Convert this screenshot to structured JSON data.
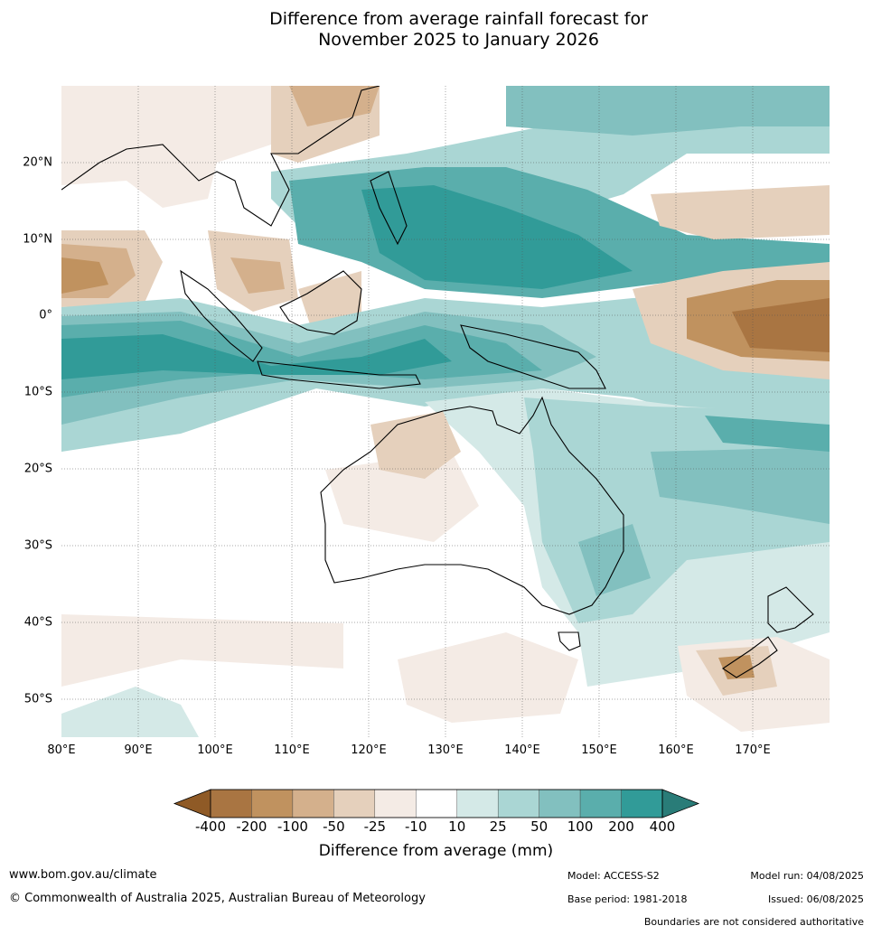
{
  "title_line1": "Difference from average rainfall forecast for",
  "title_line2": "November 2025 to January 2026",
  "lat_labels": [
    "20°N",
    "10°N",
    "0°",
    "10°S",
    "20°S",
    "30°S",
    "40°S",
    "50°S"
  ],
  "lon_labels": [
    "80°E",
    "90°E",
    "100°E",
    "110°E",
    "120°E",
    "130°E",
    "140°E",
    "150°E",
    "160°E",
    "170°E"
  ],
  "colorbar": {
    "ticks": [
      "-400",
      "-200",
      "-100",
      "-50",
      "-25",
      "-10",
      "10",
      "25",
      "50",
      "100",
      "200",
      "400"
    ],
    "colors": [
      "#8f5a26",
      "#a97542",
      "#c0925f",
      "#d4b08c",
      "#e5d0bc",
      "#f4ebe5",
      "#ffffff",
      "#d4e9e7",
      "#aad6d4",
      "#82c0bf",
      "#5aaeac",
      "#319b98",
      "#297c78"
    ],
    "label": "Difference from average (mm)"
  },
  "footer": {
    "url": "www.bom.gov.au/climate",
    "copyright": "© Commonwealth of Australia 2025, Australian Bureau of Meteorology",
    "model": "Model: ACCESS-S2",
    "base_period": "Base period: 1981-2018",
    "model_run": "Model run: 04/08/2025",
    "issued": "Issued: 06/08/2025",
    "boundaries": "Boundaries are not considered authoritative"
  }
}
